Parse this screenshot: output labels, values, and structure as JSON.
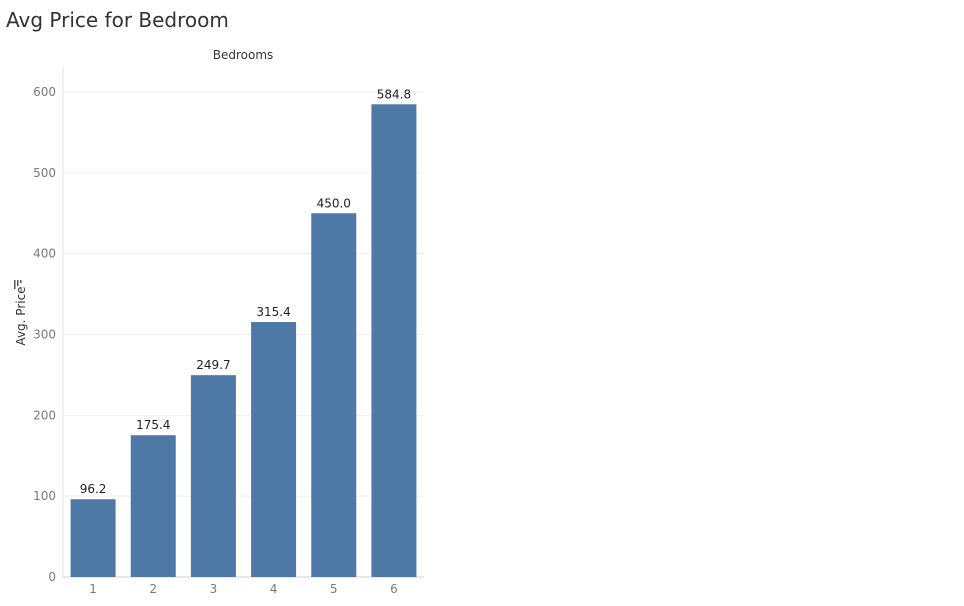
{
  "title": "Avg Price for Bedroom",
  "chart_data": {
    "type": "bar",
    "title": "Avg Price for Bedroom",
    "xlabel": "Bedrooms",
    "ylabel": "Avg. Price",
    "categories": [
      "1",
      "2",
      "3",
      "4",
      "5",
      "6"
    ],
    "values": [
      96.2,
      175.4,
      249.7,
      315.4,
      450.0,
      584.8
    ],
    "data_labels": [
      "96.2",
      "175.4",
      "249.7",
      "315.4",
      "450.0",
      "584.8"
    ],
    "ylim": [
      0,
      630
    ],
    "yticks": [
      0,
      100,
      200,
      300,
      400,
      500,
      600
    ],
    "grid": true,
    "x_header_position": "top",
    "bar_color": "#4e79a7"
  }
}
